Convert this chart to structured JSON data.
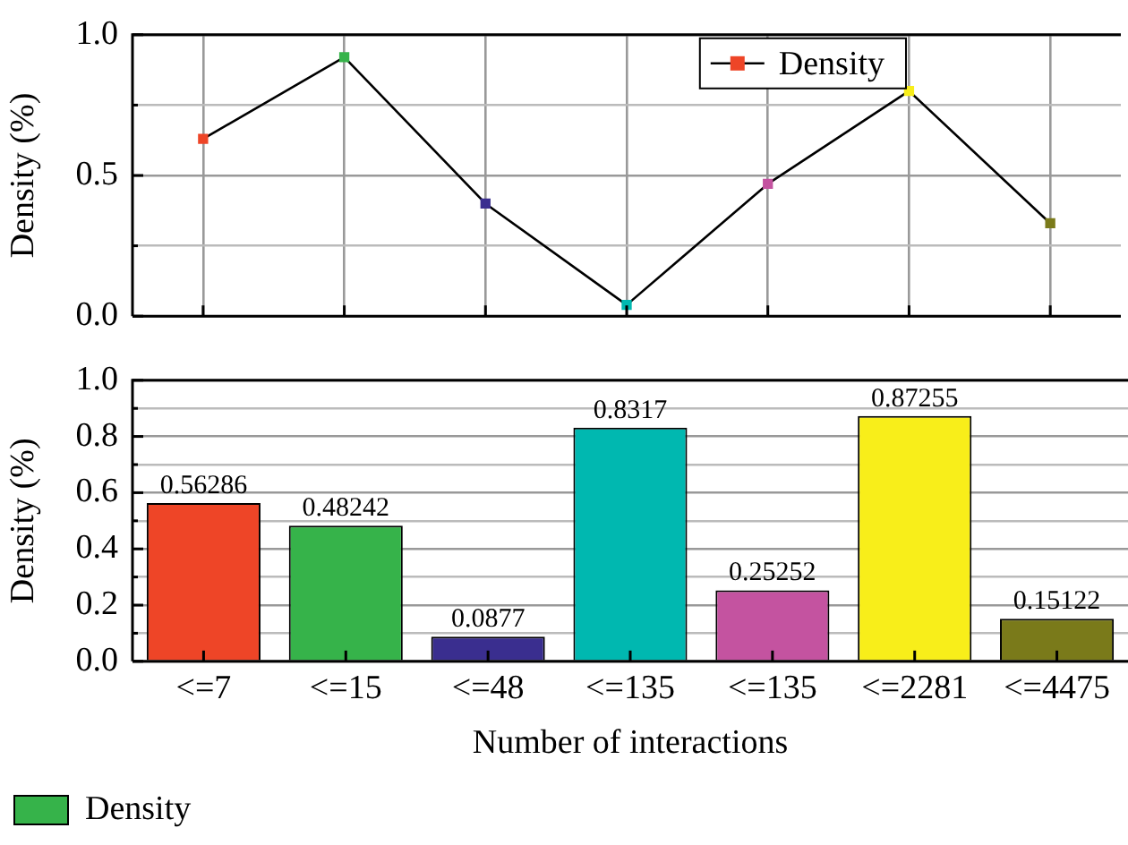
{
  "chart_data": [
    {
      "type": "line",
      "ylabel": "Density (%)",
      "categories": [
        null,
        null,
        null,
        null,
        null,
        null,
        null
      ],
      "series": [
        {
          "name": "Density",
          "color": "#000000",
          "colors": [
            "#ee4527",
            "#36b34a",
            "#3a2e8f",
            "#00b8b0",
            "#c453a0",
            "#f8ee1a",
            "#7a7a1a"
          ],
          "values": [
            0.63,
            0.92,
            0.4,
            0.04,
            0.47,
            0.8,
            0.33
          ]
        }
      ],
      "ylim": [
        0,
        1
      ],
      "yticks": [
        {
          "value": 0,
          "label": "0.0"
        },
        {
          "value": 0.25,
          "label": null
        },
        0.5,
        {
          "value": 0.75,
          "label": null
        },
        {
          "value": 1,
          "label": "1.0"
        }
      ],
      "grid": true,
      "legend": "top right",
      "marker": "square",
      "line_style": "solid",
      "tick_labels": "y"
    },
    {
      "type": "bar",
      "xlabel": "Number of interactions",
      "ylabel": "Density (%)",
      "categories": [
        "<=7",
        "<=15",
        "<=48",
        "<=135",
        "<=135",
        "<=2281",
        "<=4475"
      ],
      "series": [
        {
          "name": "Density",
          "color": "#36b34a",
          "colors": [
            "#ee4527",
            "#36b34a",
            "#3a2e8f",
            "#00b8b0",
            "#c453a0",
            "#f8ee1a",
            "#7a7a1a"
          ],
          "values": [
            0.56286,
            0.48242,
            0.0877,
            0.8317,
            0.25252,
            0.87255,
            0.15122
          ]
        }
      ],
      "ylim": [
        0,
        1
      ],
      "yticks": [
        {
          "value": 0,
          "label": "0.0"
        },
        {
          "value": 0.1,
          "label": null
        },
        0.2,
        {
          "value": 0.3,
          "label": null
        },
        0.4,
        {
          "value": 0.5,
          "label": null
        },
        0.6,
        {
          "value": 0.7,
          "label": null
        },
        0.8,
        {
          "value": 0.9,
          "label": null
        },
        {
          "value": 1,
          "label": "1.0"
        }
      ],
      "grid": "y",
      "legend": "bottom",
      "data_labels": true
    }
  ]
}
